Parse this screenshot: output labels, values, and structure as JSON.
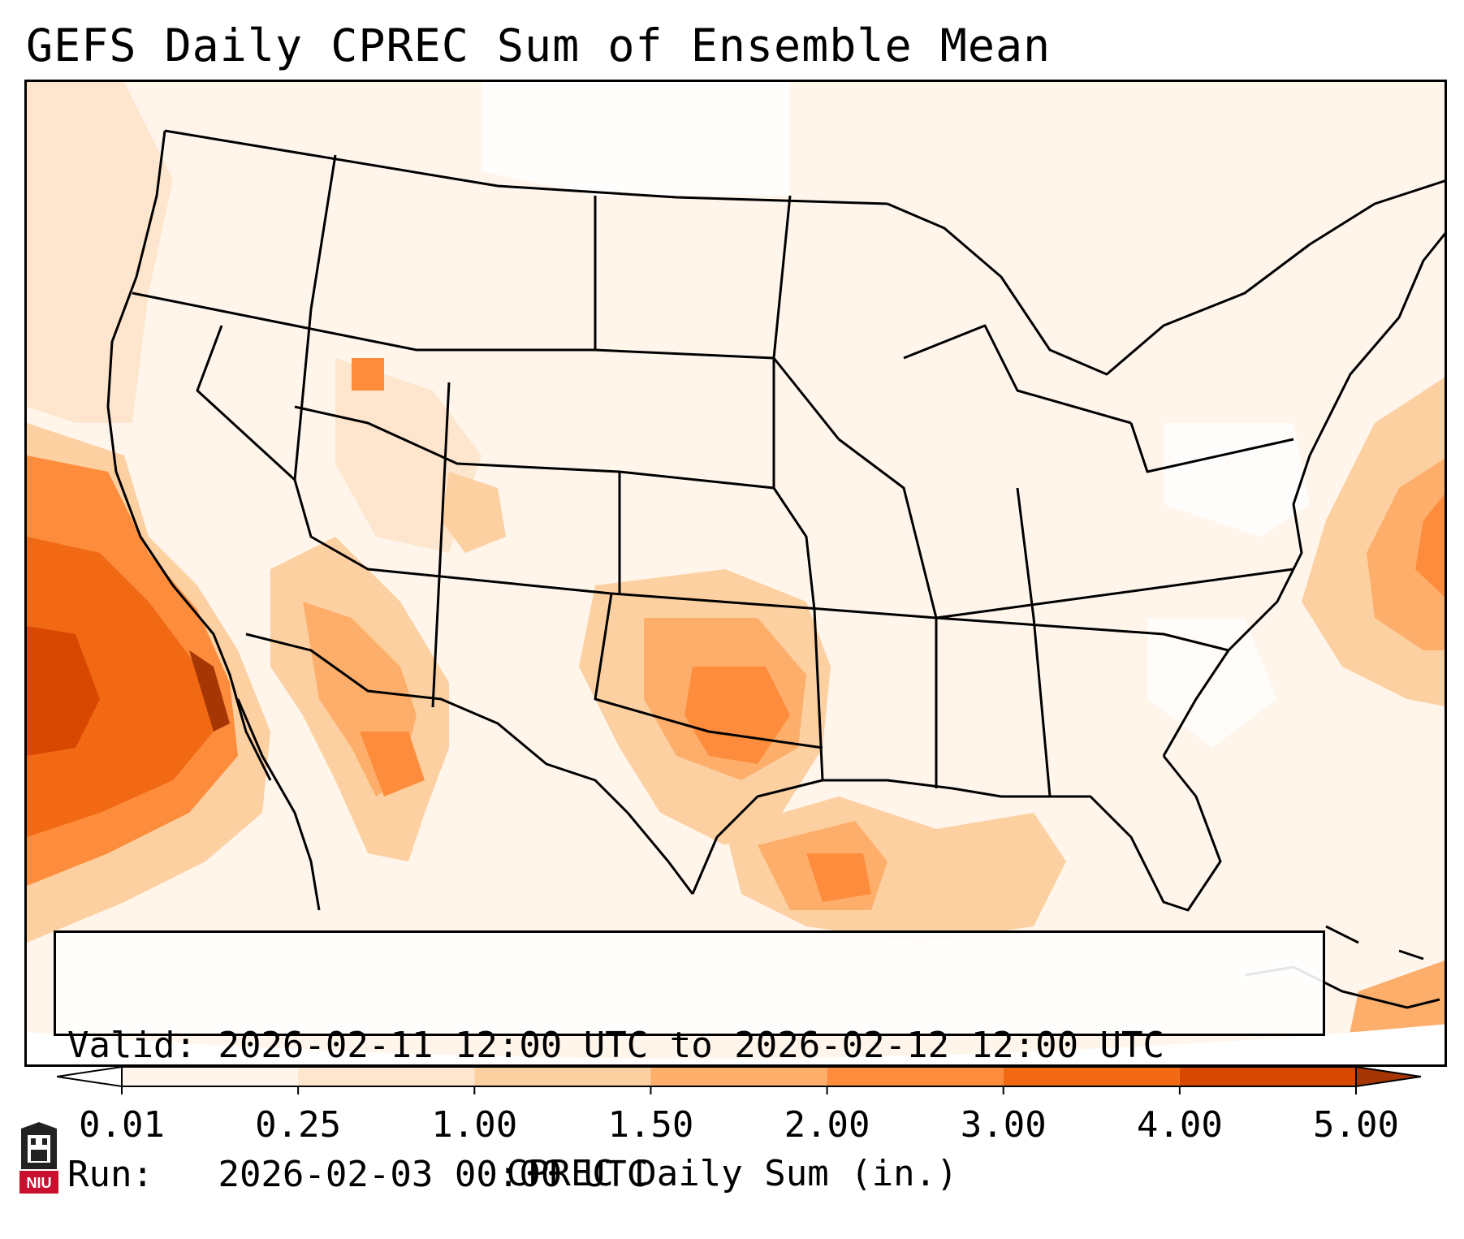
{
  "title": "GEFS Daily CPREC Sum of Ensemble Mean",
  "info": {
    "valid_label": "Valid:",
    "valid_value": "2026-02-11 12:00 UTC to 2026-02-12 12:00 UTC",
    "run_label": "Run:",
    "run_value": "2026-02-03 00:00 UTC"
  },
  "colorbar": {
    "label": "CPREC Daily Sum (in.)",
    "ticks": [
      "0.01",
      "0.25",
      "1.00",
      "1.50",
      "2.00",
      "3.00",
      "4.00",
      "5.00"
    ],
    "colors": [
      "#fff5eb",
      "#fee6ce",
      "#fdd0a2",
      "#fdae6b",
      "#fd8d3c",
      "#f16913",
      "#d94801"
    ],
    "extend_low_color": "#ffffff",
    "extend_high_color": "#a63603"
  },
  "map": {
    "region": "Continental United States",
    "projection": "Lambert Conformal",
    "field": "CPREC daily sum"
  },
  "logo": {
    "text": "NIU",
    "color": "#c8102e"
  }
}
